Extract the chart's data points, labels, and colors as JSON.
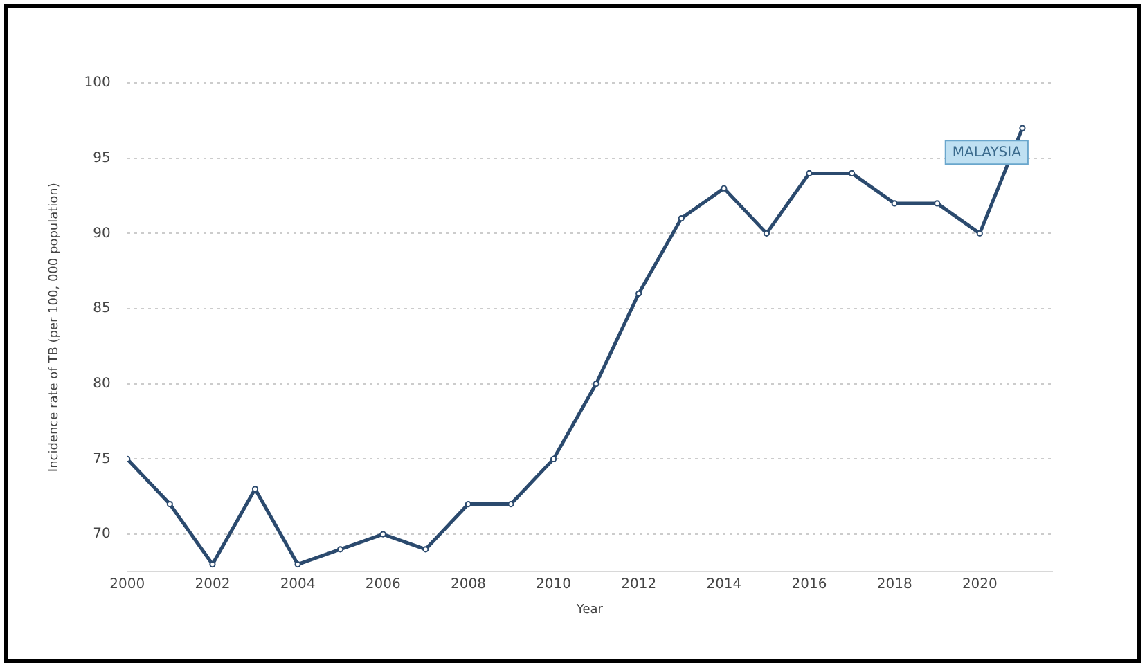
{
  "chart_data": {
    "type": "line",
    "xlabel": "Year",
    "ylabel": "Incidence rate of TB (per 100, 000 population)",
    "x": [
      2000,
      2001,
      2002,
      2003,
      2004,
      2005,
      2006,
      2007,
      2008,
      2009,
      2010,
      2011,
      2012,
      2013,
      2014,
      2015,
      2016,
      2017,
      2018,
      2019,
      2020,
      2021
    ],
    "series": [
      {
        "name": "MALAYSIA",
        "color": "#2b4a6e",
        "values": [
          75,
          72,
          68,
          73,
          68,
          69,
          70,
          69,
          72,
          72,
          75,
          80,
          86,
          91,
          93,
          90,
          94,
          94,
          92,
          92,
          90,
          97
        ]
      }
    ],
    "xlim": [
      2000,
      2021.7
    ],
    "xticks": [
      2000,
      2002,
      2004,
      2006,
      2008,
      2010,
      2012,
      2014,
      2016,
      2018,
      2020
    ],
    "ylim": [
      67.5,
      100
    ],
    "yticks": [
      70,
      75,
      80,
      85,
      90,
      95,
      100
    ],
    "grid": "y",
    "legend": false,
    "marker": "circle",
    "line_style": "solid"
  }
}
